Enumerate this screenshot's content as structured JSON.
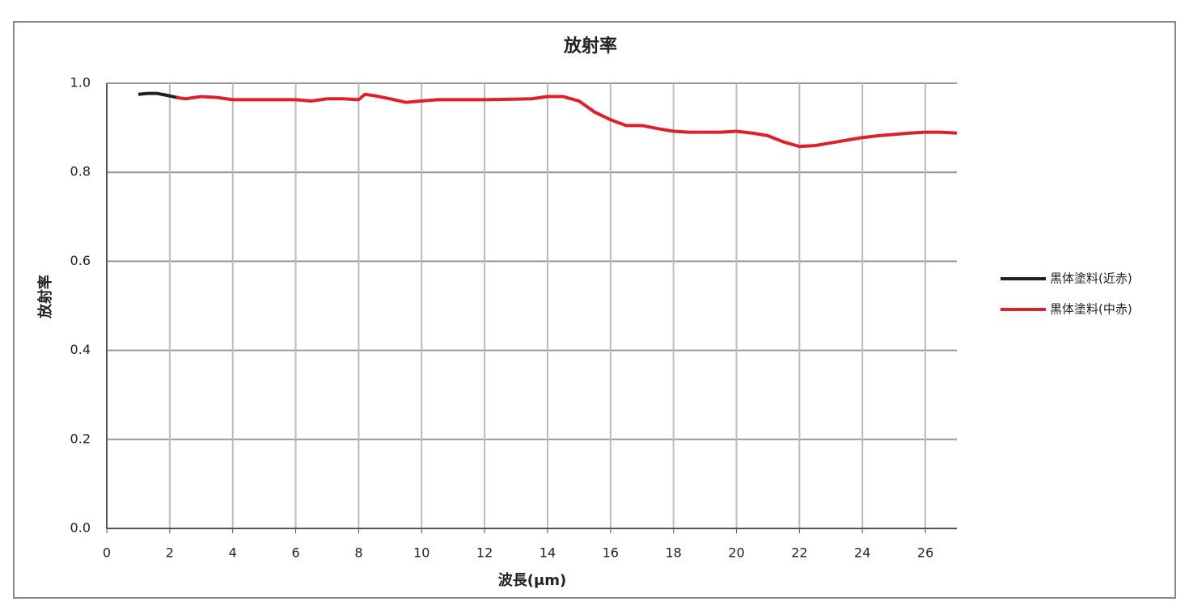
{
  "chart_data": {
    "type": "line",
    "title": "放射率",
    "x_label": "波長(μm)",
    "y_label": "放射率",
    "xlim": [
      0,
      27
    ],
    "xticks": [
      0,
      2,
      4,
      6,
      8,
      10,
      12,
      14,
      16,
      18,
      20,
      22,
      24,
      26
    ],
    "ylim": [
      0,
      1
    ],
    "yticks": [
      {
        "value": 0,
        "label": "0.0"
      },
      0.2,
      0.4,
      0.6,
      0.8,
      {
        "value": 1,
        "label": "1.0"
      }
    ],
    "grid": true,
    "legend": "right",
    "series": [
      {
        "name": "黒体塗料(近赤)",
        "color": "#231f20",
        "x": [
          1.0,
          1.3,
          1.6,
          1.9,
          2.1,
          2.3
        ],
        "values": [
          0.975,
          0.977,
          0.977,
          0.973,
          0.97,
          0.967
        ]
      },
      {
        "name": "黒体塗料(中赤)",
        "color": "#e01f2d",
        "x": [
          2.2,
          2.5,
          3,
          3.5,
          4,
          5,
          6,
          6.5,
          7,
          7.5,
          8,
          8.2,
          8.5,
          9,
          9.5,
          10,
          10.5,
          12,
          13.5,
          14,
          14.5,
          15,
          15.5,
          16,
          16.5,
          17,
          17.5,
          18,
          18.5,
          19,
          19.5,
          20,
          20.5,
          21,
          21.5,
          22,
          22.5,
          23,
          23.5,
          24,
          24.5,
          25,
          25.5,
          26,
          26.5,
          27
        ],
        "values": [
          0.968,
          0.965,
          0.97,
          0.968,
          0.963,
          0.963,
          0.963,
          0.96,
          0.965,
          0.965,
          0.963,
          0.975,
          0.972,
          0.965,
          0.957,
          0.96,
          0.963,
          0.963,
          0.965,
          0.97,
          0.97,
          0.96,
          0.935,
          0.918,
          0.905,
          0.905,
          0.898,
          0.892,
          0.89,
          0.89,
          0.89,
          0.892,
          0.888,
          0.882,
          0.868,
          0.858,
          0.86,
          0.866,
          0.872,
          0.878,
          0.882,
          0.885,
          0.888,
          0.89,
          0.89,
          0.888
        ]
      }
    ]
  }
}
